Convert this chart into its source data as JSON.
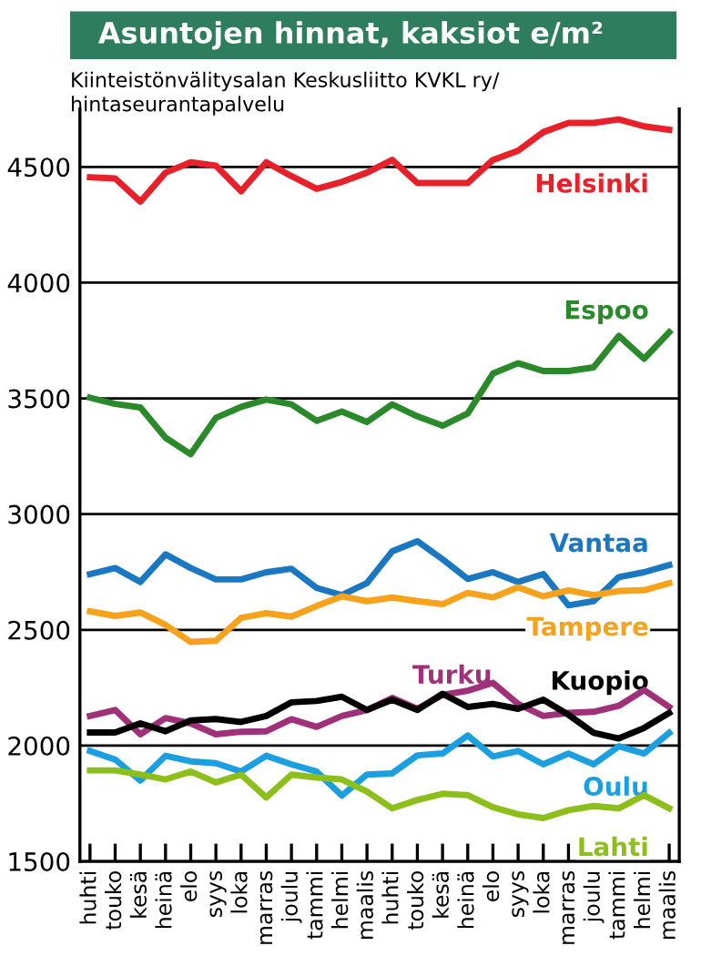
{
  "chart_data": {
    "type": "line",
    "title": "Asuntojen hinnat, kaksiot e/m²",
    "subtitle": "Kiinteistönvälitysalan Keskusliitto KVKL ry/\nhintaseurantapalvelu",
    "categories": [
      "huhti",
      "touko",
      "kesä",
      "heinä",
      "elo",
      "syys",
      "loka",
      "marras",
      "joulu",
      "tammi",
      "helmi",
      "maalis",
      "huhti",
      "touko",
      "kesä",
      "heinä",
      "elo",
      "syys",
      "loka",
      "marras",
      "joulu",
      "tammi",
      "helmi",
      "maalis"
    ],
    "ylim": [
      1500,
      4750
    ],
    "yticks": [
      1500,
      2000,
      2500,
      3000,
      3500,
      4000,
      4500
    ],
    "grid": "y",
    "legend": false,
    "marker": "none",
    "line_style": "solid",
    "series": [
      {
        "name": "Helsinki",
        "color": "#e8202a",
        "values": [
          4455,
          4450,
          4350,
          4475,
          4520,
          4505,
          4395,
          4520,
          4460,
          4405,
          4435,
          4475,
          4530,
          4430,
          4430,
          4430,
          4530,
          4570,
          4650,
          4690,
          4690,
          4705,
          4675,
          4660
        ]
      },
      {
        "name": "Espoo",
        "color": "#2a8a2a",
        "values": [
          3503,
          3476,
          3461,
          3330,
          3259,
          3416,
          3463,
          3495,
          3474,
          3403,
          3443,
          3398,
          3474,
          3422,
          3382,
          3435,
          3607,
          3652,
          3618,
          3618,
          3634,
          3770,
          3671,
          3786
        ]
      },
      {
        "name": "Vantaa",
        "color": "#1a78c2",
        "values": [
          2741,
          2767,
          2707,
          2826,
          2767,
          2718,
          2718,
          2749,
          2764,
          2681,
          2650,
          2702,
          2839,
          2883,
          2805,
          2720,
          2749,
          2707,
          2741,
          2606,
          2624,
          2728,
          2749,
          2780
        ]
      },
      {
        "name": "Tampere",
        "color": "#f7a21b",
        "values": [
          2580,
          2560,
          2575,
          2521,
          2448,
          2453,
          2552,
          2572,
          2557,
          2603,
          2645,
          2624,
          2640,
          2624,
          2611,
          2660,
          2640,
          2684,
          2645,
          2671,
          2650,
          2668,
          2671,
          2702
        ]
      },
      {
        "name": "Turku",
        "color": "#a0307a",
        "values": [
          2128,
          2154,
          2049,
          2119,
          2096,
          2049,
          2060,
          2062,
          2114,
          2081,
          2128,
          2154,
          2206,
          2159,
          2219,
          2237,
          2271,
          2180,
          2128,
          2141,
          2146,
          2172,
          2240,
          2167
        ]
      },
      {
        "name": "Kuopio",
        "color": "#000000",
        "values": [
          2057,
          2057,
          2096,
          2062,
          2109,
          2115,
          2102,
          2128,
          2187,
          2193,
          2211,
          2154,
          2198,
          2154,
          2224,
          2167,
          2180,
          2159,
          2198,
          2133,
          2055,
          2031,
          2076,
          2141
        ]
      },
      {
        "name": "Oulu",
        "color": "#1aa0e0",
        "values": [
          1977,
          1940,
          1849,
          1956,
          1932,
          1924,
          1888,
          1956,
          1919,
          1888,
          1784,
          1875,
          1880,
          1958,
          1966,
          2044,
          1953,
          1977,
          1919,
          1966,
          1919,
          1997,
          1966,
          2055
        ]
      },
      {
        "name": "Lahti",
        "color": "#8cbf1a",
        "values": [
          1893,
          1893,
          1875,
          1854,
          1888,
          1841,
          1875,
          1776,
          1875,
          1862,
          1854,
          1802,
          1729,
          1765,
          1792,
          1786,
          1734,
          1703,
          1687,
          1721,
          1739,
          1729,
          1786,
          1729
        ]
      }
    ]
  }
}
